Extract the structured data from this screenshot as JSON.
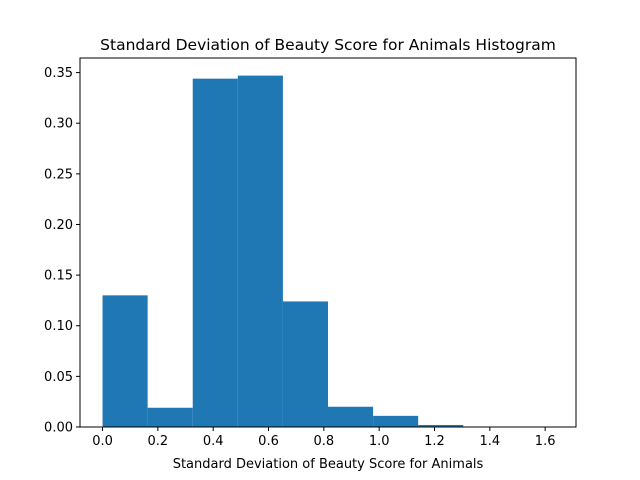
{
  "chart_data": {
    "type": "bar",
    "title": "Standard Deviation of Beauty Score for Animals Histogram",
    "xlabel": "Standard Deviation of Beauty Score for Animals",
    "ylabel": "",
    "bin_edges": [
      0.0,
      0.163,
      0.326,
      0.489,
      0.652,
      0.815,
      0.978,
      1.141,
      1.304,
      1.467,
      1.63
    ],
    "values": [
      0.13,
      0.019,
      0.344,
      0.347,
      0.124,
      0.02,
      0.011,
      0.002,
      0.0,
      0.0
    ],
    "xlim": [
      -0.0815,
      1.7115
    ],
    "ylim": [
      0.0,
      0.3644
    ],
    "xticks": [
      0.0,
      0.2,
      0.4,
      0.6,
      0.8,
      1.0,
      1.2,
      1.4,
      1.6
    ],
    "xtick_labels": [
      "0.0",
      "0.2",
      "0.4",
      "0.6",
      "0.8",
      "1.0",
      "1.2",
      "1.4",
      "1.6"
    ],
    "yticks": [
      0.0,
      0.05,
      0.1,
      0.15,
      0.2,
      0.25,
      0.3,
      0.35
    ],
    "ytick_labels": [
      "0.00",
      "0.05",
      "0.10",
      "0.15",
      "0.20",
      "0.25",
      "0.30",
      "0.35"
    ],
    "grid": false,
    "colors": {
      "bar": "#1f77b4",
      "axes": "#000000",
      "background": "#ffffff"
    }
  }
}
